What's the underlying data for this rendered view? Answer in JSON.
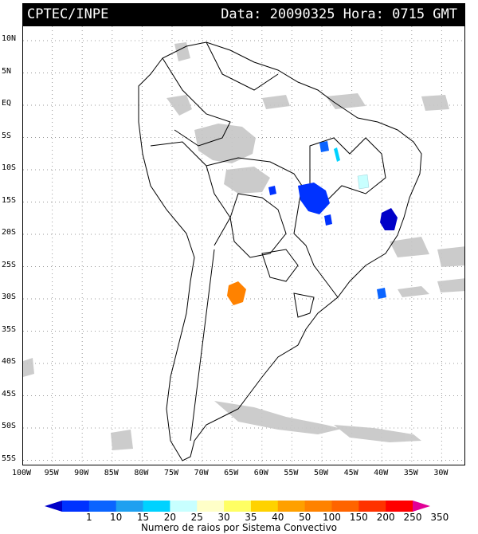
{
  "header": {
    "left_text": "CPTEC/INPE",
    "right_text": "Data: 20090325 Hora: 0715 GMT"
  },
  "axes": {
    "lat_labels": [
      "10N",
      "5N",
      "EQ",
      "5S",
      "10S",
      "15S",
      "20S",
      "25S",
      "30S",
      "35S",
      "40S",
      "45S",
      "50S",
      "55S"
    ],
    "lon_labels": [
      "100W",
      "95W",
      "90W",
      "85W",
      "80W",
      "75W",
      "70W",
      "65W",
      "60W",
      "55W",
      "50W",
      "45W",
      "40W",
      "35W",
      "30W"
    ]
  },
  "legend": {
    "ticks": [
      "1",
      "10",
      "15",
      "20",
      "25",
      "30",
      "35",
      "40",
      "50",
      "100",
      "150",
      "200",
      "250",
      "350"
    ],
    "caption": "Numero de raios por Sistema Convectivo",
    "colors": [
      "#0000c8",
      "#0032ff",
      "#0a64ff",
      "#1ea0f0",
      "#00d2ff",
      "#c8ffff",
      "#ffffc8",
      "#ffff64",
      "#ffd200",
      "#ffa000",
      "#ff8200",
      "#ff6400",
      "#ff3200",
      "#ff0000",
      "#e10096"
    ]
  },
  "storms": [
    {
      "name": "storm-argentina",
      "color": "#ff8200"
    },
    {
      "name": "storm-goias",
      "color": "#0032ff"
    },
    {
      "name": "storm-bahia-coast",
      "color": "#0000c8"
    },
    {
      "name": "storm-maranhao",
      "color": "#0a64ff"
    },
    {
      "name": "storm-bahia-inland",
      "color": "#c8ffff"
    },
    {
      "name": "storm-atlantic-south",
      "color": "#0a64ff"
    }
  ]
}
